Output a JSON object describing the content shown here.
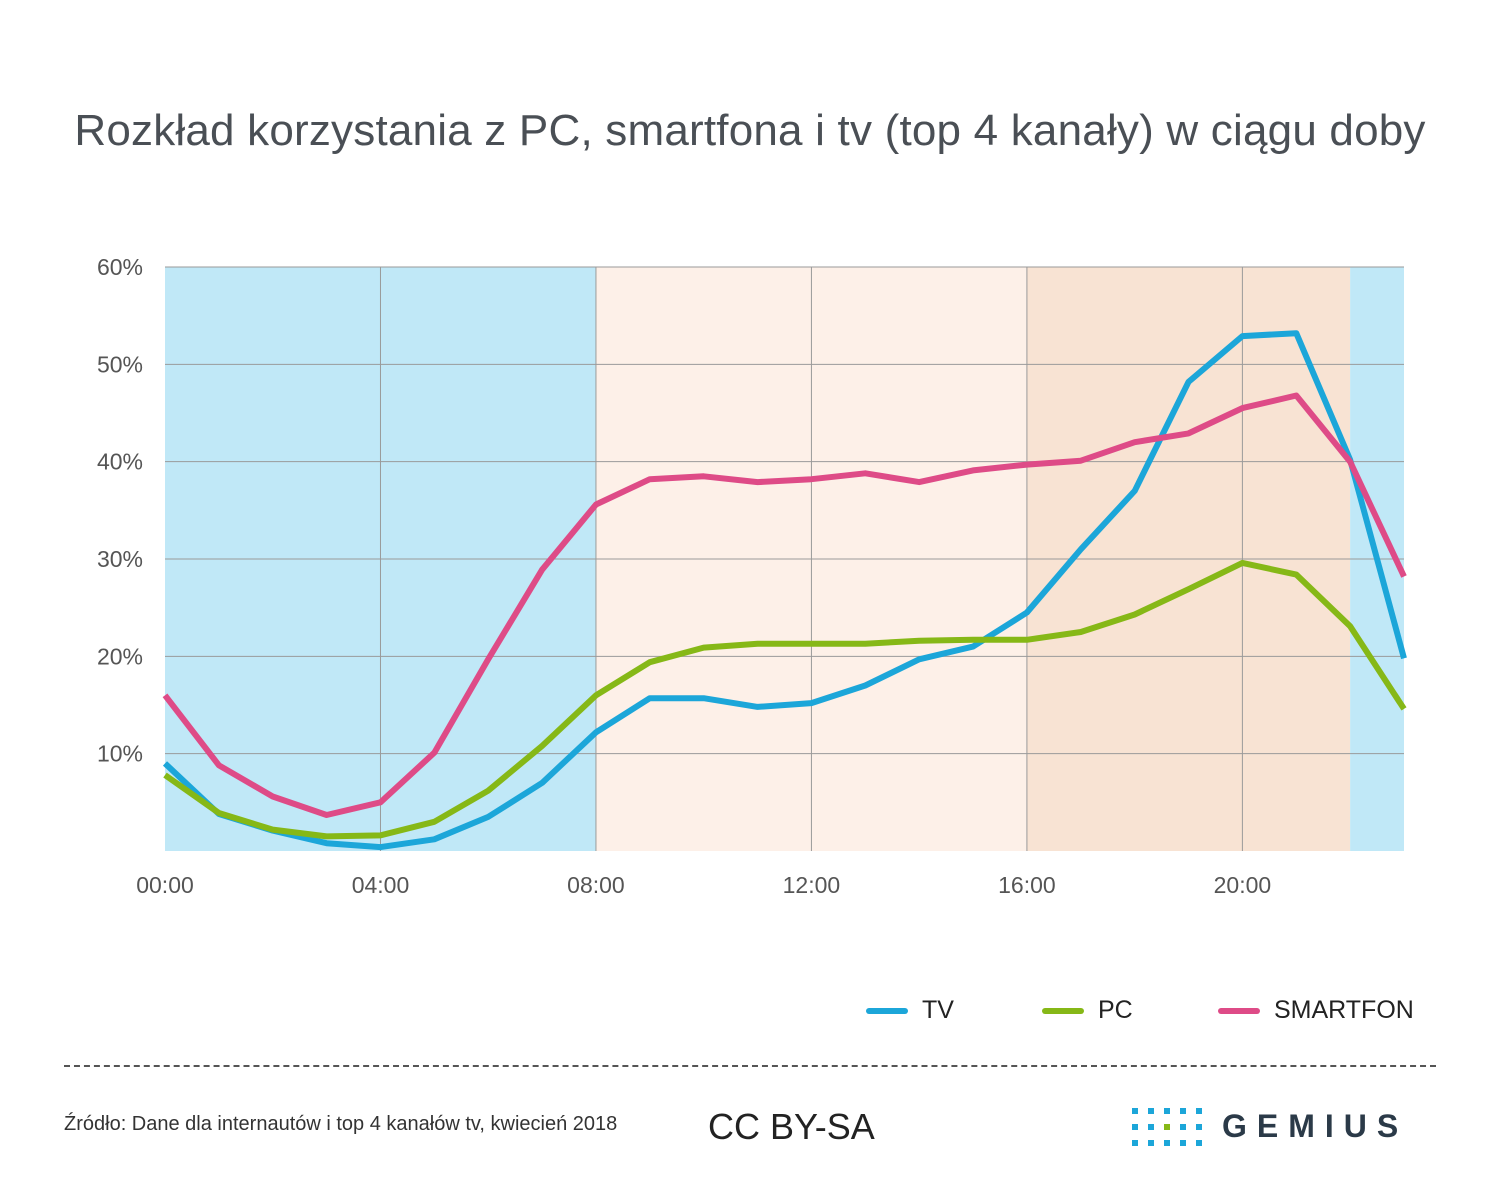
{
  "chart_data": {
    "type": "line",
    "title": "Rozkład korzystania z PC, smartfona i tv (top 4 kanały) w ciągu doby",
    "xlabel": "",
    "ylabel": "",
    "x_tick_labels": [
      "00:00",
      "04:00",
      "08:00",
      "12:00",
      "16:00",
      "20:00"
    ],
    "y_tick_labels": [
      "10%",
      "20%",
      "30%",
      "40%",
      "50%",
      "60%"
    ],
    "ylim": [
      0,
      60
    ],
    "xlim": [
      0,
      23
    ],
    "hours": [
      0,
      1,
      2,
      3,
      4,
      5,
      6,
      7,
      8,
      9,
      10,
      11,
      12,
      13,
      14,
      15,
      16,
      17,
      18,
      19,
      20,
      21,
      22,
      23
    ],
    "background_bands": [
      {
        "from": 0,
        "to": 8,
        "color": "#c0e8f7"
      },
      {
        "from": 8,
        "to": 16,
        "color": "#fdf0e8"
      },
      {
        "from": 16,
        "to": 22,
        "color": "#f8e3d3"
      },
      {
        "from": 22,
        "to": 23,
        "color": "#c0e8f7"
      }
    ],
    "series": [
      {
        "name": "TV",
        "color": "#1ca6d9",
        "values": [
          9,
          3.8,
          2.1,
          0.8,
          0.4,
          1.2,
          3.5,
          7,
          12.2,
          15.7,
          15.7,
          14.8,
          15.2,
          17,
          19.7,
          21,
          24.5,
          31,
          37,
          48.2,
          52.9,
          53.2,
          40.2,
          19.8
        ]
      },
      {
        "name": "PC",
        "color": "#86b817",
        "values": [
          7.8,
          3.9,
          2.2,
          1.5,
          1.6,
          3,
          6.2,
          10.8,
          16,
          19.4,
          20.9,
          21.3,
          21.3,
          21.3,
          21.6,
          21.7,
          21.7,
          22.5,
          24.3,
          26.9,
          29.6,
          28.4,
          23.1,
          14.6
        ]
      },
      {
        "name": "SMARTFON",
        "color": "#de4b87",
        "values": [
          16,
          8.8,
          5.6,
          3.7,
          5,
          10.1,
          19.7,
          28.9,
          35.6,
          38.2,
          38.5,
          37.9,
          38.2,
          38.8,
          37.9,
          39.1,
          39.7,
          40.1,
          42,
          42.9,
          45.5,
          46.8,
          40,
          28.2
        ]
      }
    ]
  },
  "footer": {
    "source": "Źródło: Dane dla internautów i top 4 kanałów tv, kwiecień 2018",
    "license": "CC BY-SA",
    "logo_text": "GEMIUS"
  }
}
